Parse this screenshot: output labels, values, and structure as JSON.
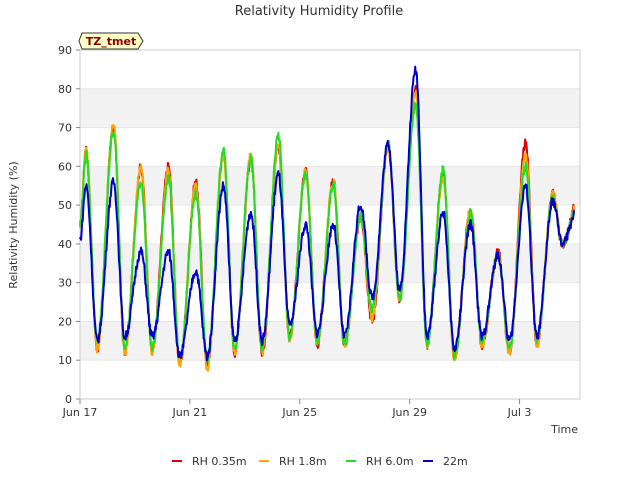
{
  "chart_data": {
    "type": "line",
    "title": "Relativity Humidity Profile",
    "xlabel": "Time",
    "ylabel": "Relativity Humidity (%)",
    "badge": "TZ_tmet",
    "ylim": [
      0,
      90
    ],
    "yticks": [
      0,
      10,
      20,
      30,
      40,
      50,
      60,
      70,
      80,
      90
    ],
    "xlim_days": [
      0,
      18.2
    ],
    "xticks": [
      {
        "day": 0,
        "label": "Jun 17"
      },
      {
        "day": 4,
        "label": "Jun 21"
      },
      {
        "day": 8,
        "label": "Jun 25"
      },
      {
        "day": 12,
        "label": "Jun 29"
      },
      {
        "day": 16,
        "label": "Jul 3"
      }
    ],
    "grid": "horizontal bands",
    "legend_position": "bottom",
    "series": [
      {
        "name": "RH 0.35m",
        "color": "#dd0000",
        "daily_max": [
          64,
          70,
          60,
          60,
          56,
          63,
          62,
          65,
          59,
          56,
          47,
          65,
          80,
          58,
          49,
          38,
          66,
          53
        ],
        "daily_min": [
          13,
          12,
          13,
          9,
          9,
          12,
          12,
          16,
          14,
          14,
          20,
          26,
          14,
          11,
          14,
          12,
          14
        ]
      },
      {
        "name": "RH 1.8m",
        "color": "#ffa500",
        "daily_max": [
          65,
          71,
          60,
          59,
          55,
          63,
          63,
          65,
          59,
          56,
          47,
          65,
          79,
          57,
          49,
          37,
          63,
          53
        ],
        "daily_min": [
          13,
          12,
          12,
          9,
          8,
          12,
          12,
          15,
          14,
          14,
          21,
          26,
          14,
          10,
          14,
          12,
          14
        ]
      },
      {
        "name": "RH 6.0m",
        "color": "#22dd22",
        "daily_max": [
          63,
          69,
          56,
          57,
          53,
          64,
          62,
          68,
          58,
          55,
          47,
          66,
          76,
          59,
          48,
          37,
          60,
          52
        ],
        "daily_min": [
          15,
          14,
          13,
          10,
          10,
          13,
          13,
          16,
          15,
          14,
          23,
          26,
          14,
          11,
          15,
          13,
          15
        ]
      },
      {
        "name": "22m",
        "color": "#0000cc",
        "daily_max": [
          55,
          56,
          38,
          38,
          33,
          55,
          48,
          58,
          45,
          45,
          50,
          66,
          85,
          48,
          45,
          37,
          55,
          51
        ],
        "daily_min": [
          15,
          16,
          16,
          11,
          11,
          15,
          15,
          19,
          17,
          16,
          26,
          28,
          16,
          13,
          16,
          15,
          16
        ]
      }
    ]
  }
}
